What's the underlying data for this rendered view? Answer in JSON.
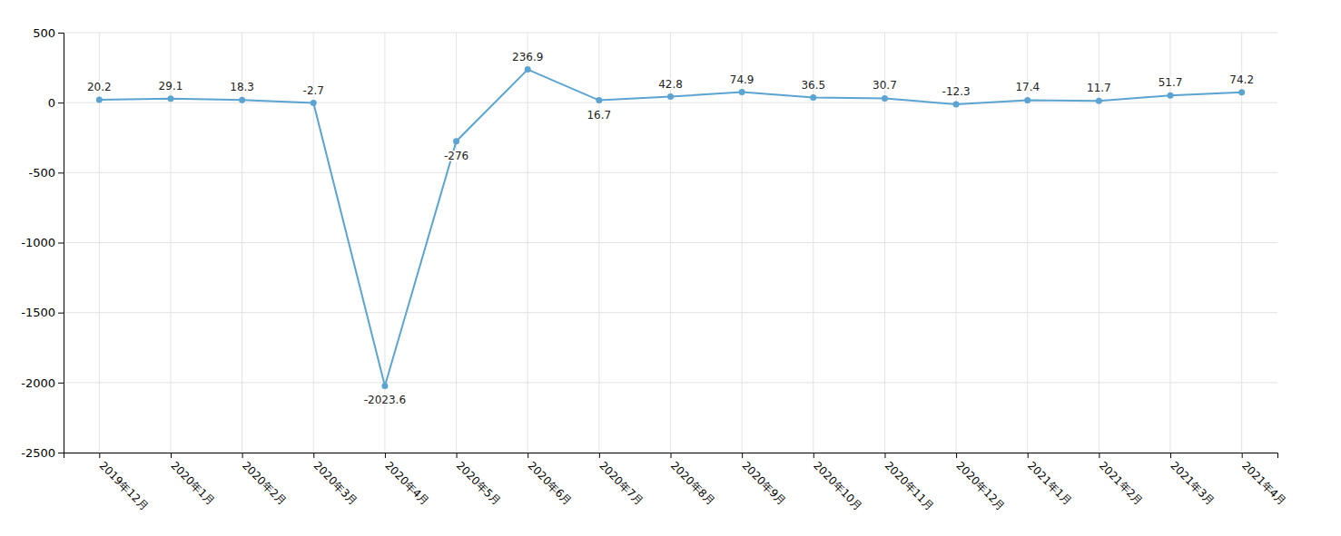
{
  "chart_data": {
    "type": "line",
    "categories": [
      "2019年12月",
      "2020年1月",
      "2020年2月",
      "2020年3月",
      "2020年4月",
      "2020年5月",
      "2020年6月",
      "2020年7月",
      "2020年8月",
      "2020年9月",
      "2020年10月",
      "2020年11月",
      "2020年12月",
      "2021年1月",
      "2021年2月",
      "2021年3月",
      "2021年4月"
    ],
    "values": [
      20.2,
      29.1,
      18.3,
      -2.7,
      -2023.6,
      -276,
      236.9,
      16.7,
      42.8,
      74.9,
      36.5,
      30.7,
      -12.3,
      17.4,
      11.7,
      51.7,
      74.2
    ],
    "color": "#5BA3D0",
    "marker": "circle",
    "ylim": [
      -2500,
      500
    ],
    "yticks": [
      -2500,
      -2000,
      -1500,
      -1000,
      -500,
      0,
      500
    ],
    "grid": true,
    "data_labels": true
  }
}
